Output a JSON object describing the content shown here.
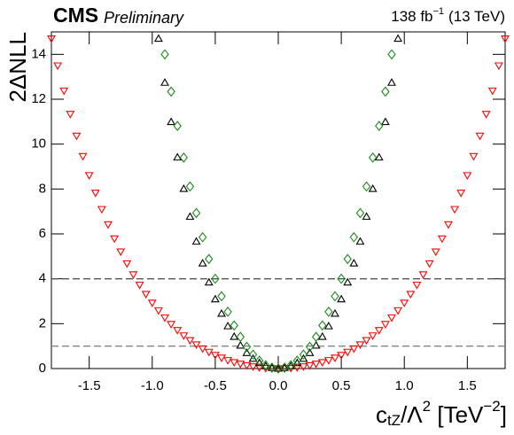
{
  "chart_data": {
    "type": "scatter",
    "title": "CMS",
    "subtitle": "Preliminary",
    "lumi": {
      "text": "138 fb",
      "sup": "−1",
      "energy": "(13 TeV)"
    },
    "x_label": {
      "base": "c",
      "sub": "tZ",
      "mid": "/Λ",
      "sup1": "2",
      "pre": " [TeV",
      "sup2": "−2",
      "post": "]"
    },
    "y_label": "2ΔNLL",
    "xlim": [
      -1.8,
      1.8
    ],
    "xticks": [
      -1.5,
      {
        "value": -1,
        "label": "-1.0"
      },
      -0.5,
      {
        "value": 0,
        "label": "0.0"
      },
      0.5,
      {
        "value": 1,
        "label": "1.0"
      },
      1.5
    ],
    "ylim": [
      0,
      15
    ],
    "yticks": [
      0,
      2,
      4,
      6,
      8,
      10,
      12,
      14
    ],
    "hlines": [
      1,
      4
    ],
    "series": [
      {
        "color": "#ff0000",
        "marker": "triangle-down",
        "x": [
          -1.8,
          -1.75,
          -1.7,
          -1.65,
          -1.6,
          -1.55,
          -1.5,
          -1.45,
          -1.4,
          -1.35,
          -1.3,
          -1.25,
          -1.2,
          -1.15,
          -1.1,
          -1.05,
          -1,
          -0.95,
          -0.9,
          -0.85,
          -0.8,
          -0.75,
          -0.7,
          -0.65,
          -0.6,
          -0.55,
          -0.5,
          -0.45,
          -0.4,
          -0.35,
          -0.3,
          -0.25,
          -0.2,
          -0.15,
          -0.1,
          -0.05,
          0,
          0.05,
          0.1,
          0.15,
          0.2,
          0.25,
          0.3,
          0.35,
          0.4,
          0.45,
          0.5,
          0.55,
          0.6,
          0.65,
          0.7,
          0.75,
          0.8,
          0.85,
          0.9,
          0.95,
          1,
          1.05,
          1.1,
          1.15,
          1.2,
          1.25,
          1.3,
          1.35,
          1.4,
          1.45,
          1.5,
          1.55,
          1.6,
          1.65,
          1.7,
          1.75,
          1.8
        ],
        "values": [
          14.7,
          13.5,
          12.38,
          11.34,
          10.37,
          9.46,
          8.61,
          7.83,
          7.1,
          6.42,
          5.79,
          5.21,
          4.68,
          4.19,
          3.73,
          3.32,
          2.93,
          2.59,
          2.27,
          1.98,
          1.71,
          1.47,
          1.26,
          1.07,
          0.89,
          0.74,
          0.6,
          0.48,
          0.37,
          0.28,
          0.21,
          0.14,
          0.09,
          0.05,
          0.02,
          0.01,
          0,
          0.01,
          0.02,
          0.05,
          0.09,
          0.14,
          0.21,
          0.28,
          0.37,
          0.48,
          0.6,
          0.74,
          0.89,
          1.07,
          1.26,
          1.47,
          1.71,
          1.98,
          2.27,
          2.59,
          2.93,
          3.32,
          3.73,
          4.19,
          4.68,
          5.21,
          5.79,
          6.42,
          7.1,
          7.83,
          8.61,
          9.46,
          10.37,
          11.34,
          12.38,
          13.5,
          14.7
        ]
      },
      {
        "color": "#000000",
        "marker": "triangle-up",
        "x": [
          -0.95,
          -0.9,
          -0.85,
          -0.8,
          -0.75,
          -0.7,
          -0.65,
          -0.6,
          -0.55,
          -0.5,
          -0.45,
          -0.4,
          -0.35,
          -0.3,
          -0.25,
          -0.2,
          -0.15,
          -0.1,
          -0.05,
          0,
          0.05,
          0.1,
          0.15,
          0.2,
          0.25,
          0.3,
          0.35,
          0.4,
          0.45,
          0.5,
          0.55,
          0.6,
          0.65,
          0.7,
          0.75,
          0.8,
          0.85,
          0.9,
          0.95
        ],
        "values": [
          14.7,
          12.74,
          10.99,
          9.41,
          8.01,
          6.77,
          5.66,
          4.69,
          3.84,
          3.09,
          2.45,
          1.89,
          1.42,
          1.03,
          0.7,
          0.44,
          0.25,
          0.11,
          0.03,
          0,
          0.03,
          0.11,
          0.25,
          0.44,
          0.7,
          1.03,
          1.42,
          1.89,
          2.45,
          3.09,
          3.84,
          4.69,
          5.66,
          6.77,
          8.01,
          9.41,
          10.99,
          12.74,
          14.7
        ]
      },
      {
        "color": "#1a8a1a",
        "marker": "diamond",
        "x": [
          -0.9,
          -0.85,
          -0.8,
          -0.75,
          -0.7,
          -0.65,
          -0.6,
          -0.55,
          -0.5,
          -0.45,
          -0.4,
          -0.35,
          -0.3,
          -0.25,
          -0.2,
          -0.15,
          -0.1,
          -0.05,
          0,
          0.05,
          0.1,
          0.15,
          0.2,
          0.25,
          0.3,
          0.35,
          0.4,
          0.45,
          0.5,
          0.55,
          0.6,
          0.65,
          0.7,
          0.75,
          0.8,
          0.85,
          0.9
        ],
        "values": [
          14,
          12.34,
          10.81,
          9.4,
          8.11,
          6.93,
          5.85,
          4.88,
          4,
          3.22,
          2.53,
          1.92,
          1.41,
          0.97,
          0.62,
          0.35,
          0.15,
          0.04,
          0,
          0.04,
          0.15,
          0.35,
          0.62,
          0.97,
          1.41,
          1.92,
          2.53,
          3.22,
          4,
          4.88,
          5.85,
          6.93,
          8.11,
          9.4,
          10.81,
          12.34,
          14
        ]
      }
    ]
  }
}
